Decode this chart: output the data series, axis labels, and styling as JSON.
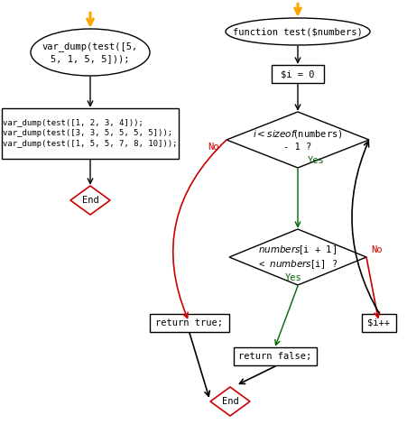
{
  "bg_color": "#ffffff",
  "orange": "#FFA500",
  "black": "#000000",
  "red": "#CC0000",
  "green": "#006400",
  "left_ellipse_text": "var_dump(test([5,\n5, 1, 5, 5]));",
  "left_rect_text": "var_dump(test([1, 2, 3, 4]));\nvar_dump(test([3, 3, 5, 5, 5, 5]));\nvar_dump(test([1, 5, 5, 7, 8, 10]));",
  "right_ellipse_text": "function test($numbers)",
  "init_box_text": "$i = 0",
  "diamond1_text": "$i < sizeof($numbers)\n- 1 ?",
  "diamond2_text": "$numbers[$i + 1]\n< $numbers[$i] ?",
  "ret_true_text": "return true;",
  "ret_false_text": "return false;",
  "inc_text": "$i++",
  "end_text": "End",
  "no_text": "No",
  "yes_text": "Yes",
  "font": "monospace",
  "fs": 7.5,
  "fs_small": 6.5
}
